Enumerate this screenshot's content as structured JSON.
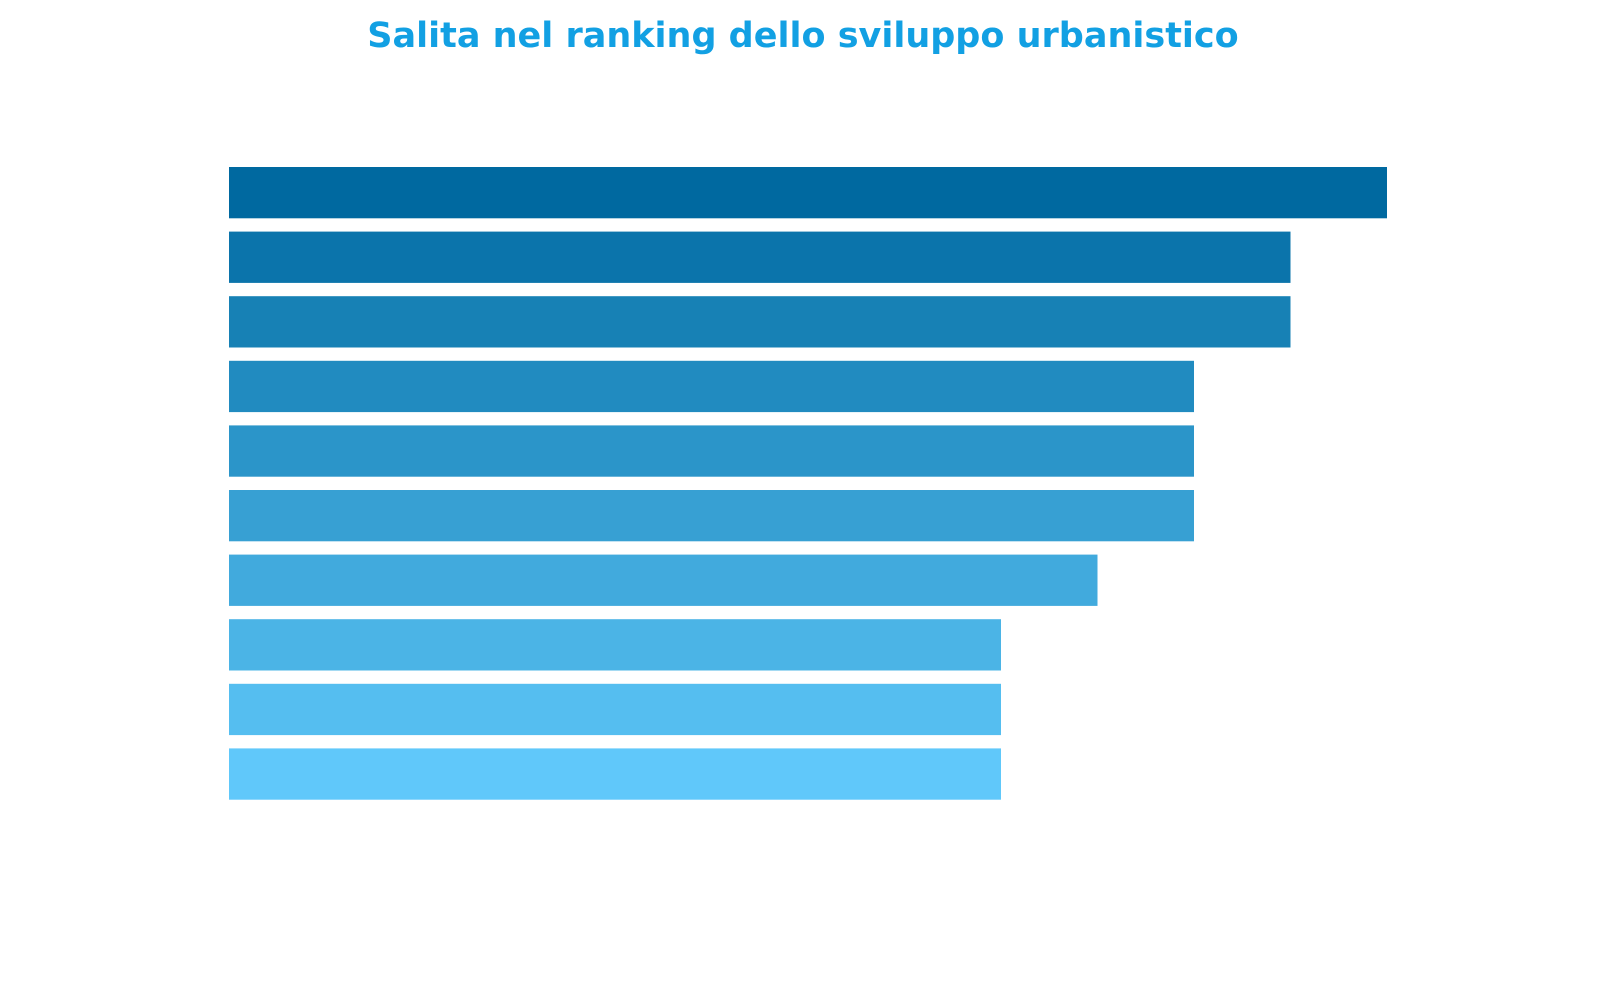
{
  "chart_data": {
    "type": "barh",
    "title": "Salita nel ranking dello sviluppo urbanistico",
    "values": [
      12,
      11,
      11,
      10,
      10,
      10,
      9,
      8,
      8,
      8
    ],
    "colors": [
      "#0069a0",
      "#0b74ab",
      "#1781b5",
      "#218bc0",
      "#2b95c9",
      "#37a0d3",
      "#41aadd",
      "#4bb4e6",
      "#55bef0",
      "#60c8fa"
    ],
    "xlim": [
      0,
      12
    ],
    "title_color": "#12a0e3"
  }
}
